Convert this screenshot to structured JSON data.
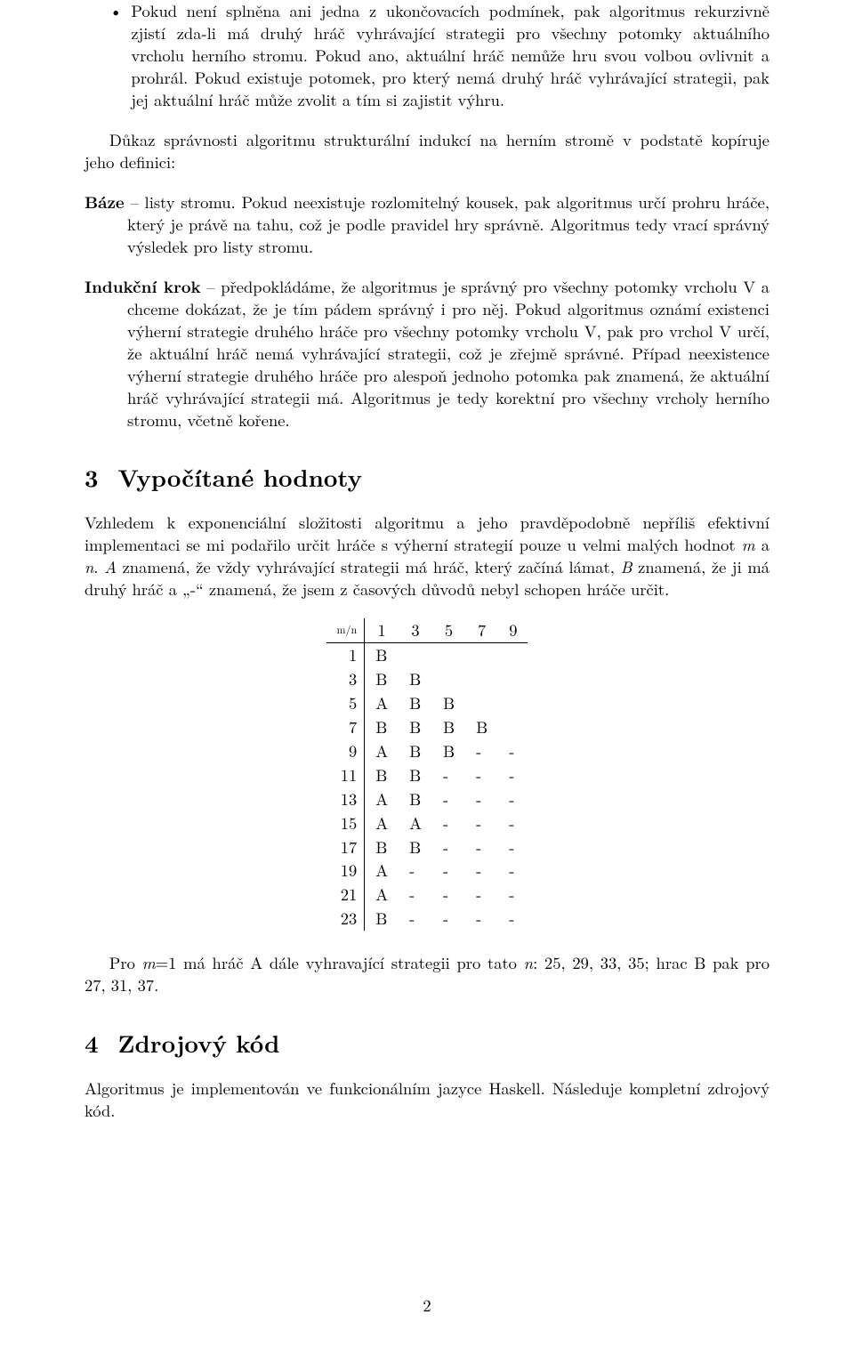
{
  "bullet": {
    "mark": "•",
    "text": "Pokud není splněna ani jedna z ukončovacích podmínek, pak algoritmus rekurzivně zjistí zda-li má druhý hráč vyhrávající strategii pro všechny potomky aktuálního vrcholu herního stromu. Pokud ano, aktuální hráč nemůže hru svou volbou ovlivnit a prohrál. Pokud existuje potomek, pro který nemá druhý hráč vyhrávající strategii, pak jej aktuální hráč může zvolit a tím si zajistit výhru."
  },
  "para_proof": "Důkaz správnosti algoritmu strukturální indukcí na herním stromě v podstatě kopíruje jeho definici:",
  "def_base": {
    "label": "Báze",
    "text": " – listy stromu. Pokud neexistuje rozlomitelný kousek, pak algoritmus určí prohru hráče, který je právě na tahu, což je podle pravidel hry správně. Algoritmus tedy vrací správný výsledek pro listy stromu."
  },
  "def_step": {
    "label": "Indukční krok",
    "text": " – předpokládáme, že algoritmus je správný pro všechny potomky vrcholu V a chceme dokázat, že je tím pádem správný i pro něj. Pokud algoritmus oznámí existenci výherní strategie druhého hráče pro všechny potomky vrcholu V, pak pro vrchol V určí, že aktuální hráč nemá vyhrávající strategii, což je zřejmě správné. Případ neexistence výherní strategie druhého hráče pro alespoň jednoho potomka pak znamená, že aktuální hráč vyhrávající strategii má. Algoritmus je tedy korektní pro všechny vrcholy herního stromu, včetně kořene."
  },
  "section3": {
    "num": "3",
    "title": "Vypočítané hodnoty"
  },
  "para_sec3_a": "Vzhledem k exponenciální složitosti algoritmu a jeho pravděpodobně nepříliš efektivní implementaci se mi podařilo určit hráče s výherní strategií pouze u velmi malých hodnot ",
  "para_sec3_b": " a ",
  "para_sec3_c": ". ",
  "para_sec3_d": " znamená, že vždy vyhrávající strategii má hráč, který začíná lámat, ",
  "para_sec3_e": " znamená, že ji má druhý hráč a „-“ znamená, že jsem z časových důvodů nebyl schopen hráče určit.",
  "m_var": "m",
  "n_var": "n",
  "A_var": "A",
  "B_var": "B",
  "table": {
    "corner": "m/n",
    "cols": [
      "1",
      "3",
      "5",
      "7",
      "9"
    ],
    "rows": [
      {
        "m": "1",
        "cells": [
          "B",
          "",
          "",
          "",
          ""
        ]
      },
      {
        "m": "3",
        "cells": [
          "B",
          "B",
          "",
          "",
          ""
        ]
      },
      {
        "m": "5",
        "cells": [
          "A",
          "B",
          "B",
          "",
          ""
        ]
      },
      {
        "m": "7",
        "cells": [
          "B",
          "B",
          "B",
          "B",
          ""
        ]
      },
      {
        "m": "9",
        "cells": [
          "A",
          "B",
          "B",
          "-",
          "-"
        ]
      },
      {
        "m": "11",
        "cells": [
          "B",
          "B",
          "-",
          "-",
          "-"
        ]
      },
      {
        "m": "13",
        "cells": [
          "A",
          "B",
          "-",
          "-",
          "-"
        ]
      },
      {
        "m": "15",
        "cells": [
          "A",
          "A",
          "-",
          "-",
          "-"
        ]
      },
      {
        "m": "17",
        "cells": [
          "B",
          "B",
          "-",
          "-",
          "-"
        ]
      },
      {
        "m": "19",
        "cells": [
          "A",
          "-",
          "-",
          "-",
          "-"
        ]
      },
      {
        "m": "21",
        "cells": [
          "A",
          "-",
          "-",
          "-",
          "-"
        ]
      },
      {
        "m": "23",
        "cells": [
          "B",
          "-",
          "-",
          "-",
          "-"
        ]
      }
    ]
  },
  "para_after_table_a": "Pro ",
  "para_after_table_b": "=1 má hráč A dále vyhravající strategii pro tato ",
  "para_after_table_c": ": 25, 29, 33, 35; hrac B pak pro 27, 31, 37.",
  "section4": {
    "num": "4",
    "title": "Zdrojový kód"
  },
  "para_sec4": "Algoritmus je implementován ve funkcionálním jazyce Haskell. Následuje kompletní zdrojový kód.",
  "page_number": "2"
}
